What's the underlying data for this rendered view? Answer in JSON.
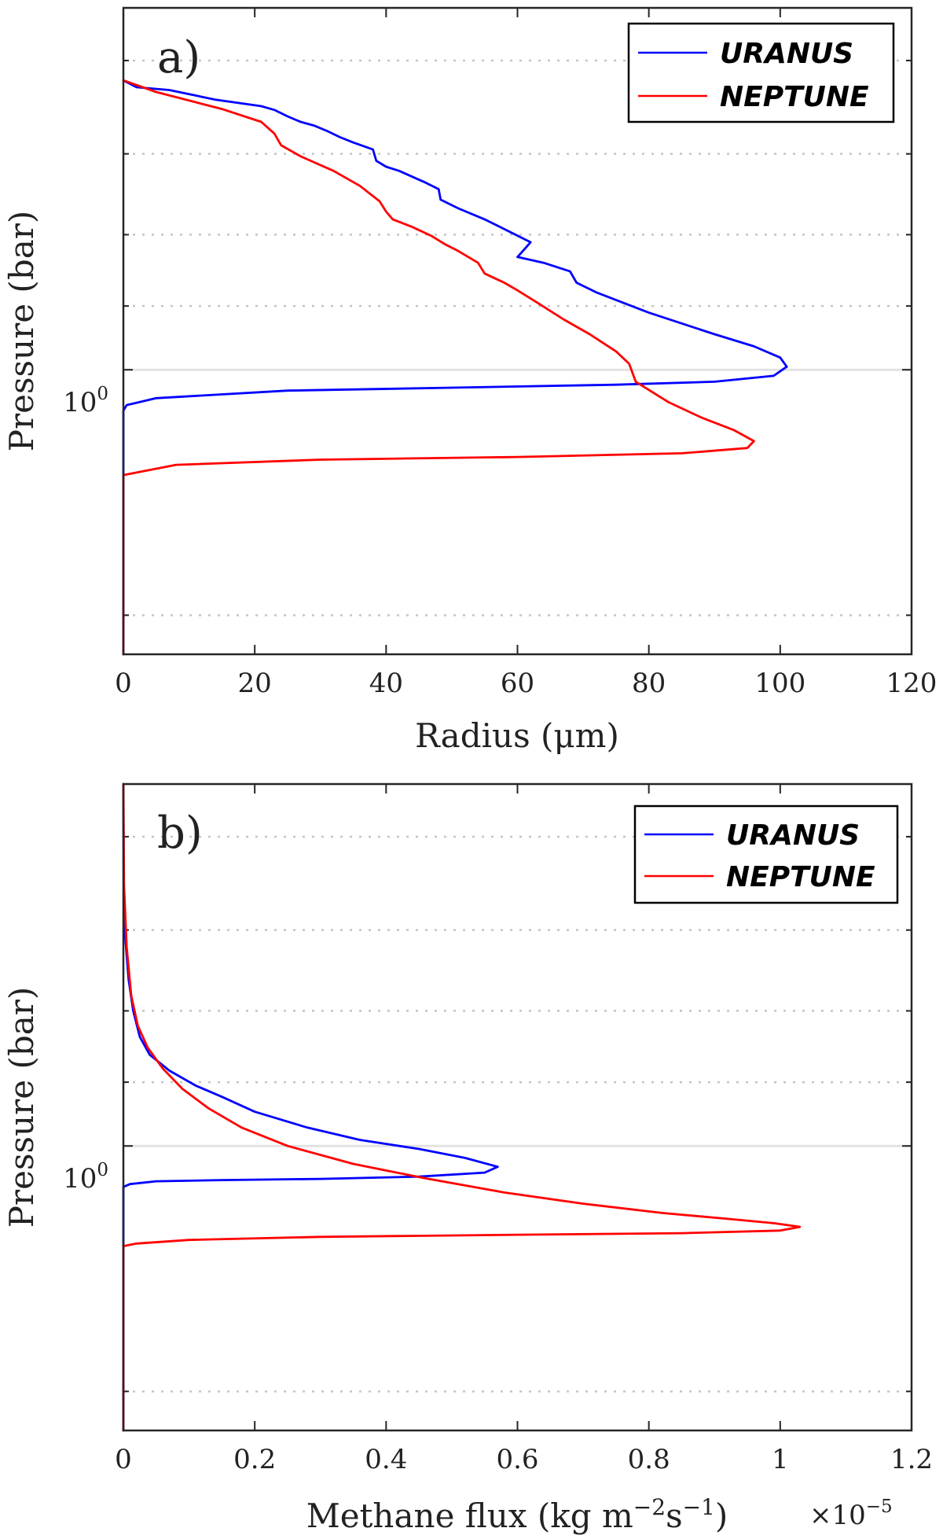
{
  "chart_data": [
    {
      "type": "line",
      "panel_label": "a)",
      "xlabel": "Radius (μm)",
      "ylabel": "Pressure (bar)",
      "xlim": [
        0,
        120
      ],
      "x_ticks": [
        "0",
        "20",
        "40",
        "60",
        "80",
        "100",
        "120"
      ],
      "y_scale": "log",
      "y_direction": "reversed",
      "ylim": [
        0.55,
        1.6
      ],
      "y_tick_label": "10^0",
      "y_tick_label_base": "10",
      "y_tick_label_exp": "0",
      "grid": "dotted horizontal gridlines",
      "legend": "top-right",
      "series": [
        {
          "name": "URANUS",
          "color": "#0000ff",
          "points": [
            [
              0,
              0.62
            ],
            [
              2,
              0.627
            ],
            [
              7,
              0.63
            ],
            [
              14,
              0.64
            ],
            [
              21,
              0.647
            ],
            [
              23,
              0.651
            ],
            [
              25,
              0.658
            ],
            [
              27,
              0.664
            ],
            [
              29,
              0.668
            ],
            [
              31,
              0.674
            ],
            [
              33,
              0.681
            ],
            [
              35,
              0.687
            ],
            [
              38,
              0.695
            ],
            [
              38.5,
              0.708
            ],
            [
              40,
              0.715
            ],
            [
              42,
              0.72
            ],
            [
              44,
              0.727
            ],
            [
              46,
              0.734
            ],
            [
              48,
              0.742
            ],
            [
              48.3,
              0.755
            ],
            [
              51,
              0.766
            ],
            [
              55,
              0.78
            ],
            [
              59,
              0.797
            ],
            [
              62,
              0.81
            ],
            [
              61,
              0.82
            ],
            [
              60,
              0.83
            ],
            [
              64,
              0.838
            ],
            [
              68,
              0.85
            ],
            [
              69,
              0.866
            ],
            [
              72,
              0.88
            ],
            [
              80,
              0.91
            ],
            [
              90,
              0.943
            ],
            [
              96,
              0.962
            ],
            [
              100,
              0.98
            ],
            [
              101,
              0.995
            ],
            [
              99,
              1.01
            ],
            [
              90,
              1.02
            ],
            [
              75,
              1.025
            ],
            [
              50,
              1.03
            ],
            [
              25,
              1.035
            ],
            [
              5,
              1.048
            ],
            [
              0.5,
              1.06
            ],
            [
              0,
              1.07
            ],
            [
              0,
              1.6
            ]
          ]
        },
        {
          "name": "NEPTUNE",
          "color": "#ff0000",
          "points": [
            [
              0,
              0.62
            ],
            [
              5,
              0.632
            ],
            [
              15,
              0.65
            ],
            [
              21,
              0.664
            ],
            [
              23,
              0.677
            ],
            [
              24,
              0.69
            ],
            [
              27,
              0.703
            ],
            [
              32,
              0.72
            ],
            [
              36,
              0.738
            ],
            [
              39,
              0.757
            ],
            [
              40,
              0.77
            ],
            [
              41,
              0.78
            ],
            [
              44,
              0.79
            ],
            [
              47,
              0.802
            ],
            [
              49,
              0.813
            ],
            [
              51,
              0.822
            ],
            [
              54,
              0.838
            ],
            [
              55,
              0.853
            ],
            [
              58,
              0.866
            ],
            [
              60,
              0.877
            ],
            [
              63,
              0.895
            ],
            [
              67,
              0.92
            ],
            [
              71,
              0.943
            ],
            [
              75,
              0.97
            ],
            [
              77,
              0.99
            ],
            [
              78,
              1.02
            ],
            [
              83,
              1.055
            ],
            [
              88,
              1.082
            ],
            [
              93,
              1.105
            ],
            [
              96,
              1.125
            ],
            [
              95,
              1.138
            ],
            [
              85,
              1.148
            ],
            [
              60,
              1.155
            ],
            [
              30,
              1.16
            ],
            [
              8,
              1.17
            ],
            [
              0,
              1.19
            ],
            [
              0,
              1.6
            ]
          ]
        }
      ]
    },
    {
      "type": "line",
      "panel_label": "b)",
      "xlabel": "Methane flux (kg m⁻²s⁻¹)",
      "xlabel_main": "Methane flux (kg m",
      "xlabel_exp1": "−2",
      "xlabel_mid": "s",
      "xlabel_exp2": "−1",
      "xlabel_end": ")",
      "x_multiplier": "×10^-5",
      "x_multiplier_base": "×10",
      "x_multiplier_exp": "−5",
      "xlim": [
        0,
        1.2
      ],
      "x_ticks": [
        "0",
        "0.2",
        "0.4",
        "0.6",
        "0.8",
        "1",
        "1.2"
      ],
      "ylabel": "Pressure (bar)",
      "y_scale": "log",
      "y_direction": "reversed",
      "ylim": [
        0.55,
        1.6
      ],
      "y_tick_label": "10^0",
      "y_tick_label_base": "10",
      "y_tick_label_exp": "0",
      "grid": "dotted horizontal gridlines",
      "legend": "top-right",
      "series": [
        {
          "name": "URANUS",
          "color": "#0000ff",
          "points": [
            [
              0,
              0.55
            ],
            [
              0.0005,
              0.65
            ],
            [
              0.003,
              0.71
            ],
            [
              0.008,
              0.76
            ],
            [
              0.015,
              0.8
            ],
            [
              0.025,
              0.835
            ],
            [
              0.04,
              0.86
            ],
            [
              0.07,
              0.883
            ],
            [
              0.11,
              0.905
            ],
            [
              0.15,
              0.922
            ],
            [
              0.2,
              0.945
            ],
            [
              0.28,
              0.97
            ],
            [
              0.36,
              0.99
            ],
            [
              0.45,
              1.005
            ],
            [
              0.52,
              1.02
            ],
            [
              0.57,
              1.035
            ],
            [
              0.55,
              1.045
            ],
            [
              0.45,
              1.052
            ],
            [
              0.3,
              1.056
            ],
            [
              0.15,
              1.058
            ],
            [
              0.05,
              1.06
            ],
            [
              0.01,
              1.065
            ],
            [
              0,
              1.07
            ],
            [
              0,
              1.6
            ]
          ]
        },
        {
          "name": "NEPTUNE",
          "color": "#ff0000",
          "points": [
            [
              0,
              0.55
            ],
            [
              0.001,
              0.65
            ],
            [
              0.005,
              0.72
            ],
            [
              0.012,
              0.78
            ],
            [
              0.022,
              0.82
            ],
            [
              0.037,
              0.85
            ],
            [
              0.06,
              0.88
            ],
            [
              0.09,
              0.91
            ],
            [
              0.13,
              0.94
            ],
            [
              0.18,
              0.97
            ],
            [
              0.25,
              1.0
            ],
            [
              0.35,
              1.03
            ],
            [
              0.46,
              1.055
            ],
            [
              0.58,
              1.08
            ],
            [
              0.7,
              1.1
            ],
            [
              0.82,
              1.117
            ],
            [
              0.92,
              1.128
            ],
            [
              0.99,
              1.136
            ],
            [
              1.03,
              1.143
            ],
            [
              1.0,
              1.15
            ],
            [
              0.85,
              1.155
            ],
            [
              0.6,
              1.158
            ],
            [
              0.3,
              1.162
            ],
            [
              0.1,
              1.168
            ],
            [
              0.02,
              1.175
            ],
            [
              0,
              1.18
            ],
            [
              0,
              1.6
            ]
          ]
        }
      ]
    }
  ]
}
